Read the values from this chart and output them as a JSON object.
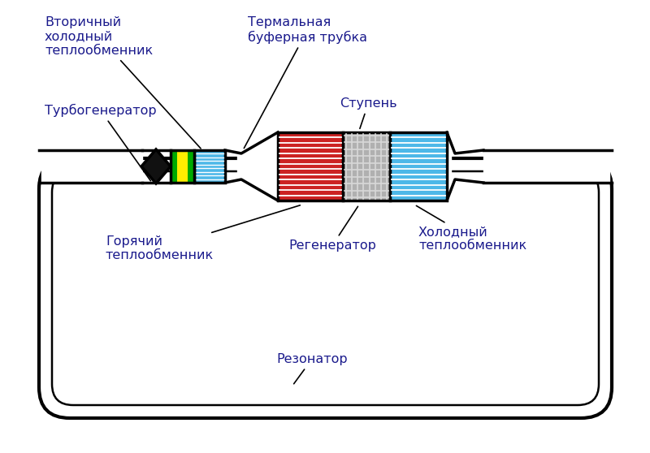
{
  "bg_color": "#ffffff",
  "line_color": "#000000",
  "text_color": "#1a1a8c",
  "fig_width": 8.0,
  "fig_height": 5.58,
  "labels": {
    "secondary_cold": "Вторичный\nхолодный\nтеплообменник",
    "turbogenerator": "Турбогенератор",
    "thermal_buffer": "Термальная\nбуферная трубка",
    "stage": "Ступень",
    "hot_hx": "Горячий\nтеплообменник",
    "regenerator": "Регенератор",
    "cold_hx": "Холодный\nтеплообменник",
    "resonator": "Резонатор"
  },
  "colors": {
    "blue_hx": "#4db8e8",
    "red_hx": "#cc2222",
    "gray_regen": "#b0b0b0",
    "green_coil": "#00aa00",
    "yellow_turb": "#ffee00",
    "black_turb": "#111111",
    "white": "#ffffff"
  }
}
